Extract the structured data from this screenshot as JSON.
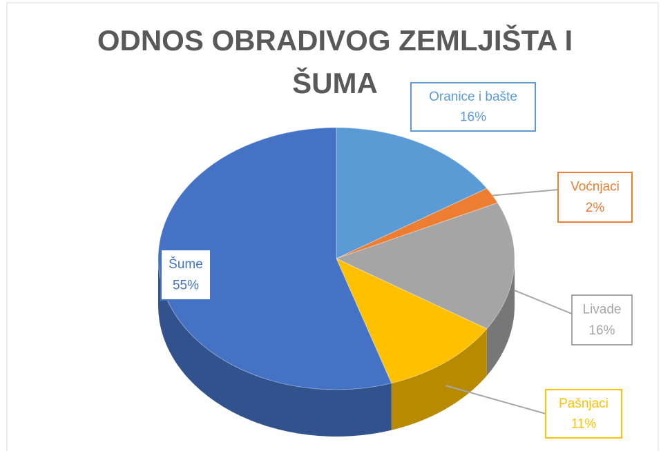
{
  "chart_data": {
    "type": "pie",
    "title": "ODNOS OBRADIVOG ZEMLJIŠTA I ŠUMA",
    "categories": [
      "Oranice i bašte",
      "Voćnjaci",
      "Livade",
      "Pašnjaci",
      "Šume"
    ],
    "values": [
      16,
      2,
      16,
      11,
      55
    ],
    "value_labels": [
      "16%",
      "2%",
      "16%",
      "11%",
      "55%"
    ],
    "colors": [
      "#5b9bd5",
      "#ed7d31",
      "#a5a5a5",
      "#ffc000",
      "#4472c4"
    ]
  }
}
